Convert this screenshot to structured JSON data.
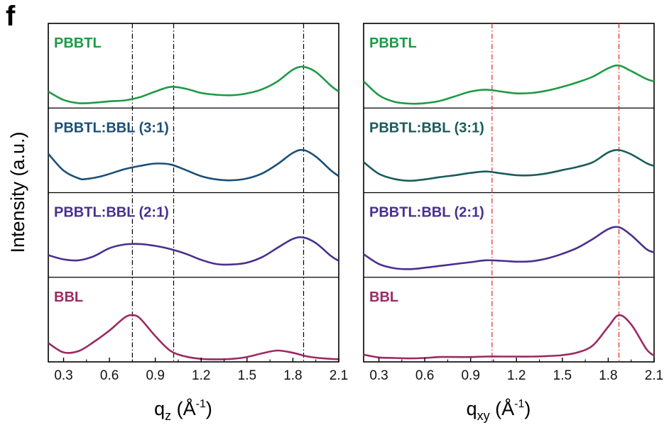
{
  "figure": {
    "panel_letter": "f",
    "ylabel": "Intensity (a.u.)"
  },
  "chart_data": [
    {
      "type": "line",
      "xlabel_base": "q",
      "xlabel_sub": "z",
      "xlabel_unit_open": " (Å",
      "xlabel_sup": "-1",
      "xlabel_unit_close": ")",
      "xlim": [
        0.2,
        2.1
      ],
      "xticks": [
        "0.3",
        "0.6",
        "0.9",
        "1.2",
        "1.5",
        "1.8",
        "2.1"
      ],
      "reference_lines": {
        "x": [
          0.75,
          1.02,
          1.87
        ],
        "color": "#000000",
        "style": "dash-dot"
      },
      "series": [
        {
          "name": "PBBTL",
          "color": "#1f9a45",
          "x": [
            0.2,
            0.3,
            0.4,
            0.5,
            0.6,
            0.7,
            0.8,
            0.9,
            1.0,
            1.1,
            1.2,
            1.3,
            1.4,
            1.5,
            1.6,
            1.7,
            1.8,
            1.87,
            1.95,
            2.05,
            2.1
          ],
          "y": [
            0.3,
            0.12,
            0.05,
            0.06,
            0.09,
            0.11,
            0.18,
            0.3,
            0.4,
            0.36,
            0.27,
            0.23,
            0.22,
            0.26,
            0.35,
            0.52,
            0.77,
            0.83,
            0.72,
            0.42,
            0.3
          ]
        },
        {
          "name": "PBBTL:BBL (3:1)",
          "color": "#1b4f78",
          "x": [
            0.2,
            0.3,
            0.4,
            0.45,
            0.55,
            0.7,
            0.8,
            0.9,
            1.0,
            1.1,
            1.2,
            1.3,
            1.4,
            1.5,
            1.6,
            1.7,
            1.8,
            1.87,
            1.95,
            2.05,
            2.1
          ],
          "y": [
            0.78,
            0.42,
            0.25,
            0.24,
            0.3,
            0.45,
            0.52,
            0.57,
            0.55,
            0.43,
            0.3,
            0.23,
            0.21,
            0.25,
            0.36,
            0.56,
            0.8,
            0.86,
            0.72,
            0.42,
            0.3
          ]
        },
        {
          "name": "PBBTL:BBL (2:1)",
          "color": "#4a2f8f",
          "x": [
            0.2,
            0.3,
            0.4,
            0.5,
            0.6,
            0.7,
            0.8,
            0.9,
            1.0,
            1.1,
            1.2,
            1.3,
            1.4,
            1.5,
            1.6,
            1.7,
            1.8,
            1.87,
            1.95,
            2.05,
            2.1
          ],
          "y": [
            0.42,
            0.33,
            0.31,
            0.4,
            0.57,
            0.65,
            0.66,
            0.62,
            0.55,
            0.45,
            0.32,
            0.23,
            0.22,
            0.26,
            0.38,
            0.58,
            0.77,
            0.8,
            0.68,
            0.4,
            0.3
          ]
        },
        {
          "name": "BBL",
          "color": "#9c2a63",
          "x": [
            0.2,
            0.3,
            0.4,
            0.5,
            0.6,
            0.7,
            0.75,
            0.8,
            0.9,
            1.0,
            1.1,
            1.2,
            1.3,
            1.4,
            1.5,
            1.6,
            1.7,
            1.8,
            1.9,
            2.0,
            2.1
          ],
          "y": [
            0.35,
            0.15,
            0.18,
            0.38,
            0.62,
            0.9,
            0.95,
            0.88,
            0.5,
            0.18,
            0.06,
            0.01,
            0.0,
            0.01,
            0.05,
            0.13,
            0.19,
            0.14,
            0.06,
            0.02,
            0.0
          ]
        }
      ]
    },
    {
      "type": "line",
      "xlabel_base": "q",
      "xlabel_sub": "xy",
      "xlabel_unit_open": " (Å",
      "xlabel_sup": "-1",
      "xlabel_unit_close": ")",
      "xlim": [
        0.2,
        2.1
      ],
      "xticks": [
        "0.3",
        "0.6",
        "0.9",
        "1.2",
        "1.5",
        "1.8",
        "2.1"
      ],
      "reference_lines": {
        "x": [
          1.04,
          1.87
        ],
        "color": "#e2231a",
        "style": "dash-dot"
      },
      "series": [
        {
          "name": "PBBTL",
          "color": "#1f9a45",
          "x": [
            0.2,
            0.3,
            0.4,
            0.5,
            0.6,
            0.7,
            0.8,
            0.9,
            1.0,
            1.1,
            1.2,
            1.3,
            1.4,
            1.5,
            1.6,
            1.7,
            1.8,
            1.87,
            1.95,
            2.05,
            2.1
          ],
          "y": [
            0.52,
            0.22,
            0.08,
            0.04,
            0.05,
            0.1,
            0.2,
            0.3,
            0.34,
            0.3,
            0.26,
            0.27,
            0.32,
            0.4,
            0.5,
            0.62,
            0.8,
            0.86,
            0.74,
            0.57,
            0.52
          ]
        },
        {
          "name": "PBBTL:BBL (3:1)",
          "color": "#1b5c5a",
          "x": [
            0.2,
            0.3,
            0.4,
            0.5,
            0.6,
            0.7,
            0.8,
            0.9,
            1.0,
            1.1,
            1.2,
            1.3,
            1.4,
            1.5,
            1.6,
            1.7,
            1.8,
            1.87,
            1.95,
            2.05,
            2.1
          ],
          "y": [
            0.6,
            0.35,
            0.24,
            0.2,
            0.23,
            0.28,
            0.32,
            0.37,
            0.4,
            0.36,
            0.32,
            0.32,
            0.36,
            0.43,
            0.5,
            0.6,
            0.81,
            0.86,
            0.77,
            0.58,
            0.52
          ]
        },
        {
          "name": "PBBTL:BBL (2:1)",
          "color": "#4a2f8f",
          "x": [
            0.2,
            0.3,
            0.4,
            0.5,
            0.6,
            0.7,
            0.8,
            0.9,
            1.0,
            1.1,
            1.2,
            1.3,
            1.4,
            1.5,
            1.6,
            1.7,
            1.8,
            1.87,
            1.95,
            2.05,
            2.1
          ],
          "y": [
            0.44,
            0.23,
            0.14,
            0.12,
            0.15,
            0.19,
            0.23,
            0.27,
            0.31,
            0.3,
            0.28,
            0.29,
            0.35,
            0.45,
            0.58,
            0.77,
            0.98,
            1.02,
            0.85,
            0.55,
            0.48
          ]
        },
        {
          "name": "BBL",
          "color": "#9c2a63",
          "x": [
            0.2,
            0.3,
            0.4,
            0.5,
            0.6,
            0.7,
            0.8,
            0.9,
            1.0,
            1.1,
            1.2,
            1.3,
            1.4,
            1.5,
            1.6,
            1.7,
            1.8,
            1.87,
            1.95,
            2.05,
            2.1
          ],
          "y": [
            0.1,
            0.04,
            0.03,
            0.02,
            0.03,
            0.05,
            0.05,
            0.05,
            0.06,
            0.06,
            0.06,
            0.06,
            0.07,
            0.09,
            0.15,
            0.3,
            0.7,
            0.95,
            0.75,
            0.22,
            0.08
          ]
        }
      ]
    }
  ]
}
